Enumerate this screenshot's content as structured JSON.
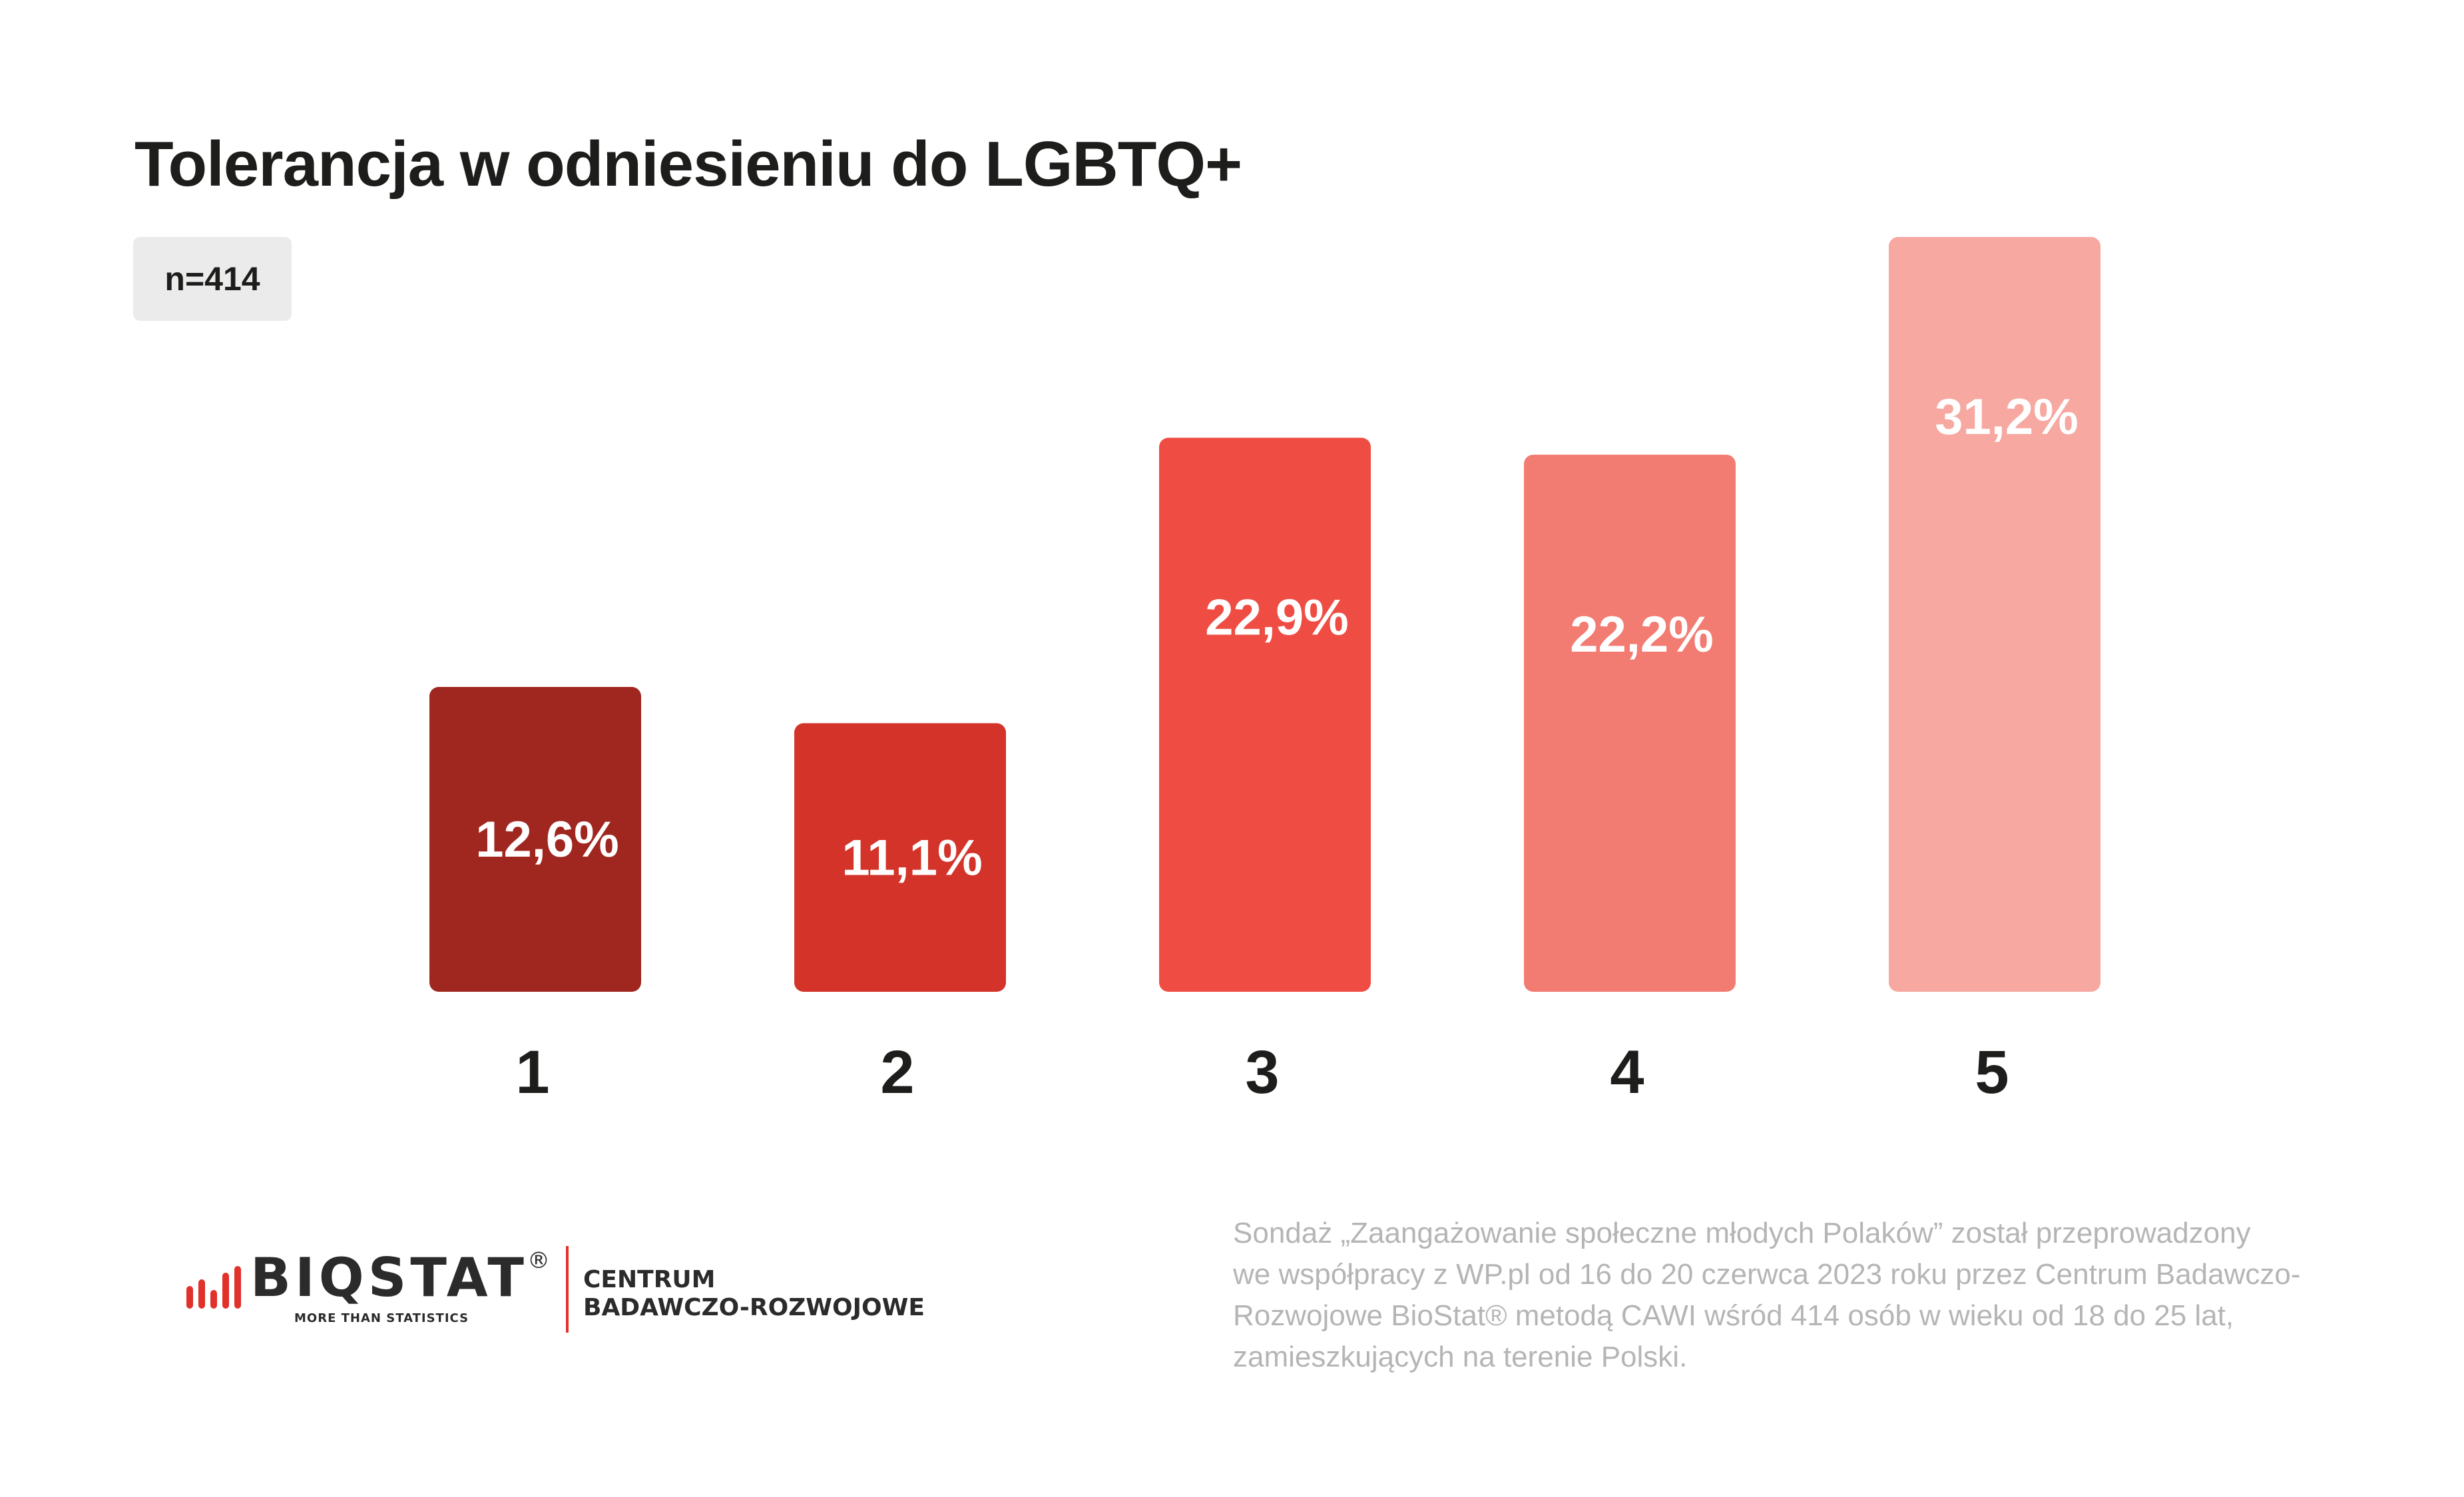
{
  "title": "Tolerancja w odniesieniu do LGBTQ+",
  "sample_badge": "n=414",
  "chart_data": {
    "type": "bar",
    "title": "Tolerancja w odniesieniu do LGBTQ+",
    "categories": [
      "1",
      "2",
      "3",
      "4",
      "5"
    ],
    "values": [
      12.6,
      11.1,
      22.9,
      22.2,
      31.2
    ],
    "value_labels": [
      "12,6%",
      "11,1%",
      "22,9%",
      "22,2%",
      "31,2%"
    ],
    "unit": "%",
    "ylim": [
      0,
      31.2
    ],
    "grid": false,
    "colors": [
      "#a0271f",
      "#d33328",
      "#ef4d44",
      "#f27b72",
      "#f6a8a1"
    ]
  },
  "logo": {
    "name": "BIQSTAT",
    "registered": "®",
    "tagline": "MORE THAN STATISTICS",
    "unit_line1": "CENTRUM",
    "unit_line2": "BADAWCZO-ROZWOJOWE",
    "accent_color": "#e0312a"
  },
  "footnote": {
    "lines": [
      "Sondaż  „Zaangażowanie społeczne młodych Polaków” został przeprowadzony",
      "we współpracy z WP.pl od 16 do 20 czerwca 2023 roku przez Centrum Badawczo-",
      "Rozwojowe BioStat® metodą CAWI wśród 414 osób w wieku od 18 do 25 lat,",
      "zamieszkujących na terenie Polski."
    ]
  }
}
